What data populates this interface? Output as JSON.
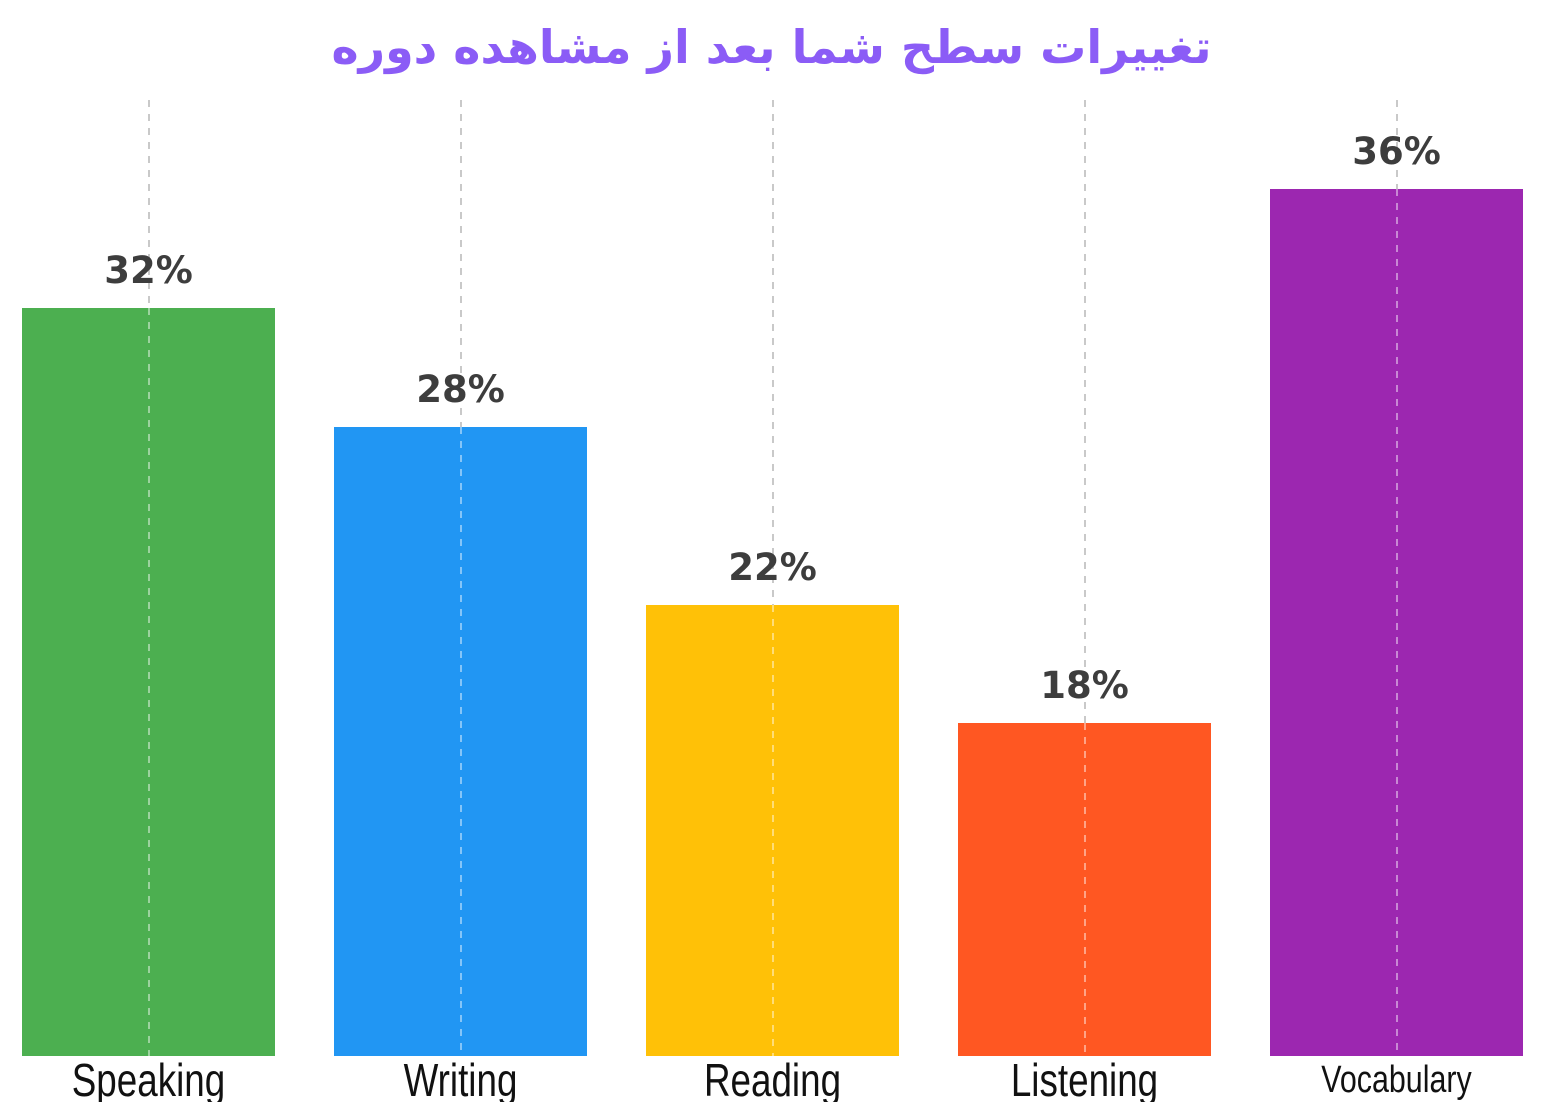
{
  "title": "تغییرات سطح شما بعد از مشاهده دوره",
  "colors": {
    "title": "#8B5CF6",
    "value_label": "#3d3d3d",
    "axis_label": "#111111",
    "gridline": "#c9c9c9",
    "background": "#ffffff"
  },
  "chart_data": {
    "type": "bar",
    "title": "تغییرات سطح شما بعد از مشاهده دوره",
    "categories": [
      "Speaking",
      "Writing",
      "Reading",
      "Listening",
      "Vocabulary"
    ],
    "values": [
      32,
      28,
      22,
      18,
      36
    ],
    "value_labels": [
      "32%",
      "28%",
      "22%",
      "18%",
      "36%"
    ],
    "bar_colors": [
      "#4CAF50",
      "#2196F3",
      "#FFC107",
      "#FF5722",
      "#9C27B0"
    ],
    "xlabel": "",
    "ylabel": "",
    "ylim": [
      6.8,
      39.0
    ],
    "grid": "dashed-vertical",
    "legend": "none"
  }
}
